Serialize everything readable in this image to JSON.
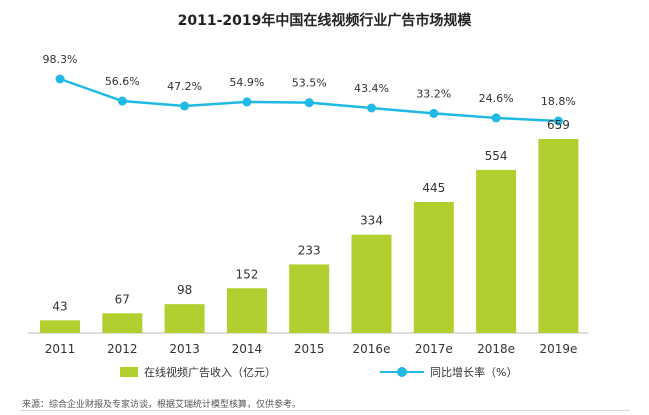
{
  "chart_data": {
    "type": "bar+line",
    "title": "2011-2019年中国在线视频行业广告市场规模",
    "categories": [
      "2011",
      "2012",
      "2013",
      "2014",
      "2015",
      "2016e",
      "2017e",
      "2018e",
      "2019e"
    ],
    "series": [
      {
        "name": "在线视频广告收入（亿元）",
        "type": "bar",
        "color": "#b2cf30",
        "values": [
          43,
          67,
          98,
          152,
          233,
          334,
          445,
          554,
          659
        ],
        "labels": [
          "43",
          "67",
          "98",
          "152",
          "233",
          "334",
          "445",
          "554",
          "659"
        ]
      },
      {
        "name": "同比增长率（%）",
        "type": "line",
        "color": "#1fb9e3",
        "values": [
          98.3,
          56.6,
          47.2,
          54.9,
          53.5,
          43.4,
          33.2,
          24.6,
          18.8
        ],
        "labels": [
          "98.3%",
          "56.6%",
          "47.2%",
          "54.9%",
          "53.5%",
          "43.4%",
          "33.2%",
          "24.6%",
          "18.8%"
        ]
      }
    ],
    "grid": false,
    "legend_position": "bottom"
  },
  "source_note": "来源：综合企业财报及专家访谈，根据艾瑞统计模型核算，仅供参考。"
}
